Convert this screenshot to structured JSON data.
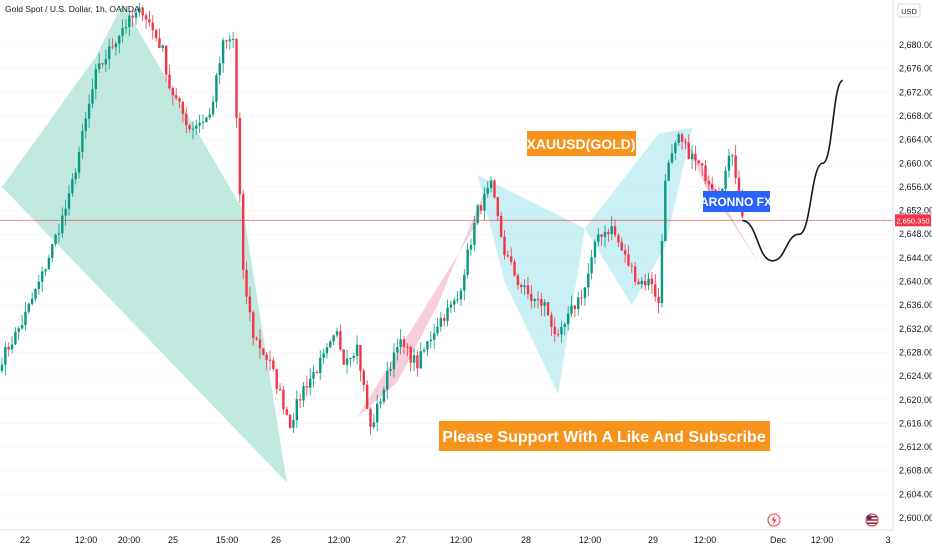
{
  "symbol_header": "Gold Spot / U.S. Dollar, 1h, OANDA",
  "currency_label": "USD",
  "current_price_label": "2,650.350",
  "banner_title": "XAUUSD(GOLD)",
  "banner_brand": "ARONNO FX",
  "banner_cta": "Please Support With A Like And Subscribe",
  "colors": {
    "bull": "#089981",
    "bear": "#f23645",
    "pattern_teal": "#a8dfd3",
    "pattern_cyan": "#b3e8f0",
    "pattern_pink": "#f5b8cf",
    "banner_orange": "#f7931a",
    "banner_blue": "#2962ff",
    "price_line": "#f23645"
  },
  "chart_data": {
    "type": "candlestick",
    "y_axis": {
      "ticks": [
        "2,680.000",
        "2,676.000",
        "2,672.000",
        "2,668.000",
        "2,664.000",
        "2,660.000",
        "2,656.000",
        "2,652.000",
        "2,648.000",
        "2,644.000",
        "2,640.000",
        "2,636.000",
        "2,632.000",
        "2,628.000",
        "2,624.000",
        "2,620.000",
        "2,616.000",
        "2,612.000",
        "2,608.000",
        "2,604.000",
        "2,600.000"
      ],
      "range": [
        2598,
        2685
      ]
    },
    "x_axis": {
      "ticks": [
        "22",
        "12:00",
        "20:00",
        "25",
        "15:00",
        "26",
        "12:00",
        "27",
        "12:00",
        "28",
        "12:00",
        "29",
        "12:00",
        "Dec",
        "12:00",
        "3"
      ]
    },
    "current_price": 2650.35,
    "path_anchors": [
      {
        "t": 0,
        "p": 2627
      },
      {
        "t": 6,
        "p": 2633
      },
      {
        "t": 12,
        "p": 2641
      },
      {
        "t": 20,
        "p": 2654
      },
      {
        "t": 28,
        "p": 2675
      },
      {
        "t": 36,
        "p": 2683
      },
      {
        "t": 42,
        "p": 2686
      },
      {
        "t": 48,
        "p": 2679
      },
      {
        "t": 50,
        "p": 2673
      },
      {
        "t": 56,
        "p": 2666
      },
      {
        "t": 62,
        "p": 2668
      },
      {
        "t": 66,
        "p": 2680
      },
      {
        "t": 69,
        "p": 2681
      },
      {
        "t": 72,
        "p": 2641
      },
      {
        "t": 75,
        "p": 2631
      },
      {
        "t": 80,
        "p": 2626
      },
      {
        "t": 86,
        "p": 2616
      },
      {
        "t": 90,
        "p": 2622
      },
      {
        "t": 96,
        "p": 2627
      },
      {
        "t": 100,
        "p": 2631
      },
      {
        "t": 102,
        "p": 2627
      },
      {
        "t": 106,
        "p": 2629
      },
      {
        "t": 110,
        "p": 2615
      },
      {
        "t": 114,
        "p": 2622
      },
      {
        "t": 118,
        "p": 2630
      },
      {
        "t": 124,
        "p": 2626
      },
      {
        "t": 130,
        "p": 2633
      },
      {
        "t": 136,
        "p": 2637
      },
      {
        "t": 142,
        "p": 2652
      },
      {
        "t": 146,
        "p": 2656
      },
      {
        "t": 150,
        "p": 2645
      },
      {
        "t": 154,
        "p": 2640
      },
      {
        "t": 158,
        "p": 2637
      },
      {
        "t": 162,
        "p": 2636
      },
      {
        "t": 166,
        "p": 2630
      },
      {
        "t": 170,
        "p": 2635
      },
      {
        "t": 174,
        "p": 2639
      },
      {
        "t": 178,
        "p": 2648
      },
      {
        "t": 182,
        "p": 2649
      },
      {
        "t": 186,
        "p": 2644
      },
      {
        "t": 190,
        "p": 2640
      },
      {
        "t": 194,
        "p": 2640
      },
      {
        "t": 196,
        "p": 2636
      },
      {
        "t": 198,
        "p": 2658
      },
      {
        "t": 202,
        "p": 2664
      },
      {
        "t": 206,
        "p": 2661
      },
      {
        "t": 210,
        "p": 2658
      },
      {
        "t": 214,
        "p": 2655
      },
      {
        "t": 218,
        "p": 2662
      },
      {
        "t": 221,
        "p": 2651
      }
    ],
    "projection": [
      {
        "t": 221,
        "p": 2650.3
      },
      {
        "t": 230,
        "p": 2643.5
      },
      {
        "t": 238,
        "p": 2648
      },
      {
        "t": 245,
        "p": 2660
      },
      {
        "t": 251,
        "p": 2674
      }
    ],
    "patterns": [
      {
        "name": "teal",
        "color": "pattern_teal",
        "points": [
          [
            0,
            2656
          ],
          [
            28,
            2678
          ],
          [
            36,
            2687
          ],
          [
            72,
            2652
          ],
          [
            85,
            2606
          ],
          [
            0,
            2656
          ]
        ]
      },
      {
        "name": "pink-left",
        "color": "pattern_pink",
        "points": [
          [
            106,
            2617
          ],
          [
            142,
            2650
          ],
          [
            146,
            2658
          ],
          [
            130,
            2636
          ],
          [
            118,
            2623
          ]
        ]
      },
      {
        "name": "cyan",
        "color": "pattern_cyan",
        "points": [
          [
            142,
            2658
          ],
          [
            174,
            2649
          ],
          [
            166,
            2621
          ],
          [
            150,
            2640
          ]
        ]
      },
      {
        "name": "cyan-right",
        "color": "pattern_cyan",
        "points": [
          [
            174,
            2649
          ],
          [
            196,
            2665
          ],
          [
            206,
            2666
          ],
          [
            198,
            2646
          ],
          [
            188,
            2636
          ]
        ]
      },
      {
        "name": "pink-right",
        "color": "pattern_pink",
        "points": [
          [
            202,
            2666
          ],
          [
            226,
            2643
          ],
          [
            218,
            2650
          ],
          [
            210,
            2656
          ]
        ]
      }
    ]
  }
}
